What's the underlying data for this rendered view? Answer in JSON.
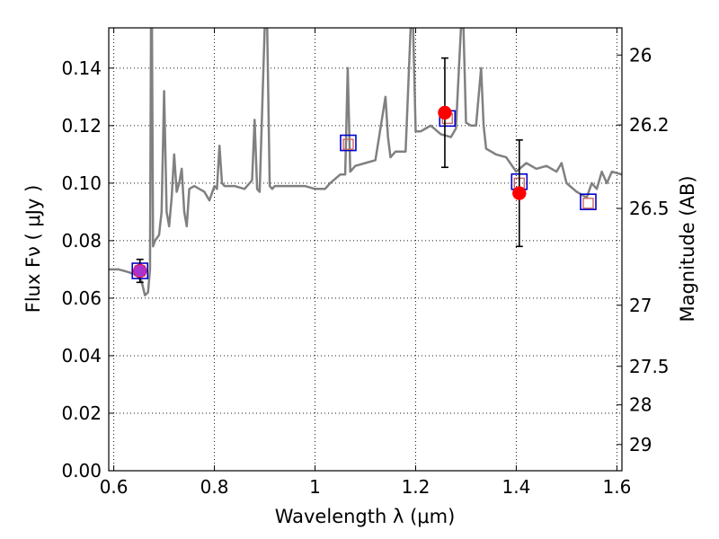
{
  "chart_data": {
    "type": "scatter",
    "title": "",
    "xlabel": "Wavelength  λ (μm)",
    "ylabel": "Flux  Fν  ( μJy )",
    "ylabel_right": "Magnitude (AB)",
    "xlim": [
      0.59,
      1.61
    ],
    "ylim": [
      0.0,
      0.154
    ],
    "grid": true,
    "x_ticks": [
      0.6,
      0.8,
      1.0,
      1.2,
      1.4,
      1.6
    ],
    "x_tick_labels": [
      "0.6",
      "0.8",
      "1",
      "1.2",
      "1.4",
      "1.6"
    ],
    "y_ticks": [
      0.0,
      0.02,
      0.04,
      0.06,
      0.08,
      0.1,
      0.12,
      0.14
    ],
    "y_tick_labels": [
      "0.00",
      "0.02",
      "0.04",
      "0.06",
      "0.08",
      "0.10",
      "0.12",
      "0.14"
    ],
    "right_ticks": [
      {
        "label": "26",
        "mag": 26.0
      },
      {
        "label": "26.2",
        "mag": 26.2
      },
      {
        "label": "26.5",
        "mag": 26.5
      },
      {
        "label": "27",
        "mag": 27.0
      },
      {
        "label": "27.5",
        "mag": 27.5
      },
      {
        "label": "28",
        "mag": 28.0
      },
      {
        "label": "29",
        "mag": 29.0
      }
    ],
    "series": [
      {
        "kind": "line",
        "color": "#808080",
        "x": [
          0.59,
          0.61,
          0.63,
          0.645,
          0.655,
          0.662,
          0.668,
          0.672,
          0.674,
          0.676,
          0.678,
          0.682,
          0.69,
          0.695,
          0.7,
          0.705,
          0.71,
          0.715,
          0.72,
          0.725,
          0.73,
          0.735,
          0.74,
          0.745,
          0.75,
          0.76,
          0.77,
          0.78,
          0.79,
          0.8,
          0.805,
          0.81,
          0.815,
          0.82,
          0.84,
          0.86,
          0.875,
          0.88,
          0.885,
          0.89,
          0.9,
          0.905,
          0.91,
          0.915,
          0.92,
          0.94,
          0.96,
          0.98,
          1.0,
          1.02,
          1.03,
          1.05,
          1.06,
          1.065,
          1.07,
          1.08,
          1.1,
          1.12,
          1.14,
          1.145,
          1.15,
          1.16,
          1.18,
          1.19,
          1.195,
          1.2,
          1.21,
          1.22,
          1.23,
          1.25,
          1.27,
          1.28,
          1.29,
          1.295,
          1.3,
          1.31,
          1.32,
          1.33,
          1.335,
          1.34,
          1.36,
          1.38,
          1.4,
          1.42,
          1.44,
          1.46,
          1.48,
          1.49,
          1.5,
          1.52,
          1.54,
          1.55,
          1.56,
          1.57,
          1.58,
          1.59,
          1.61
        ],
        "y": [
          0.07,
          0.07,
          0.069,
          0.068,
          0.066,
          0.061,
          0.062,
          0.07,
          0.154,
          0.154,
          0.078,
          0.08,
          0.082,
          0.09,
          0.132,
          0.09,
          0.085,
          0.095,
          0.11,
          0.097,
          0.1,
          0.105,
          0.09,
          0.085,
          0.098,
          0.099,
          0.098,
          0.097,
          0.094,
          0.099,
          0.098,
          0.113,
          0.1,
          0.099,
          0.099,
          0.098,
          0.101,
          0.122,
          0.098,
          0.097,
          0.154,
          0.154,
          0.099,
          0.098,
          0.099,
          0.099,
          0.099,
          0.099,
          0.098,
          0.098,
          0.1,
          0.103,
          0.103,
          0.14,
          0.104,
          0.106,
          0.107,
          0.108,
          0.13,
          0.116,
          0.109,
          0.111,
          0.111,
          0.154,
          0.154,
          0.118,
          0.118,
          0.119,
          0.12,
          0.117,
          0.116,
          0.119,
          0.154,
          0.154,
          0.121,
          0.12,
          0.12,
          0.14,
          0.12,
          0.112,
          0.11,
          0.109,
          0.104,
          0.107,
          0.105,
          0.106,
          0.104,
          0.107,
          0.1,
          0.097,
          0.095,
          0.1,
          0.098,
          0.104,
          0.1,
          0.104,
          0.103
        ]
      },
      {
        "kind": "open-square",
        "color": "#0000cc",
        "x": [
          0.652,
          1.066,
          1.263,
          1.406,
          1.543
        ],
        "y": [
          0.0695,
          0.114,
          0.1225,
          0.1005,
          0.0935
        ]
      },
      {
        "kind": "open-square-small",
        "color": "#cc6666",
        "x": [
          0.652,
          1.066,
          1.263,
          1.406,
          1.543
        ],
        "y": [
          0.0695,
          0.1135,
          0.1225,
          0.1,
          0.093
        ]
      },
      {
        "kind": "filled-circle",
        "color": "#ff0000",
        "x": [
          0.652,
          1.258,
          1.406
        ],
        "y": [
          0.0695,
          0.1245,
          0.0965
        ],
        "yerr": [
          0.004,
          0.019,
          0.0185
        ]
      },
      {
        "kind": "filled-circle-small",
        "color": "#aa33cc",
        "x": [
          0.652
        ],
        "y": [
          0.0695
        ]
      }
    ]
  }
}
